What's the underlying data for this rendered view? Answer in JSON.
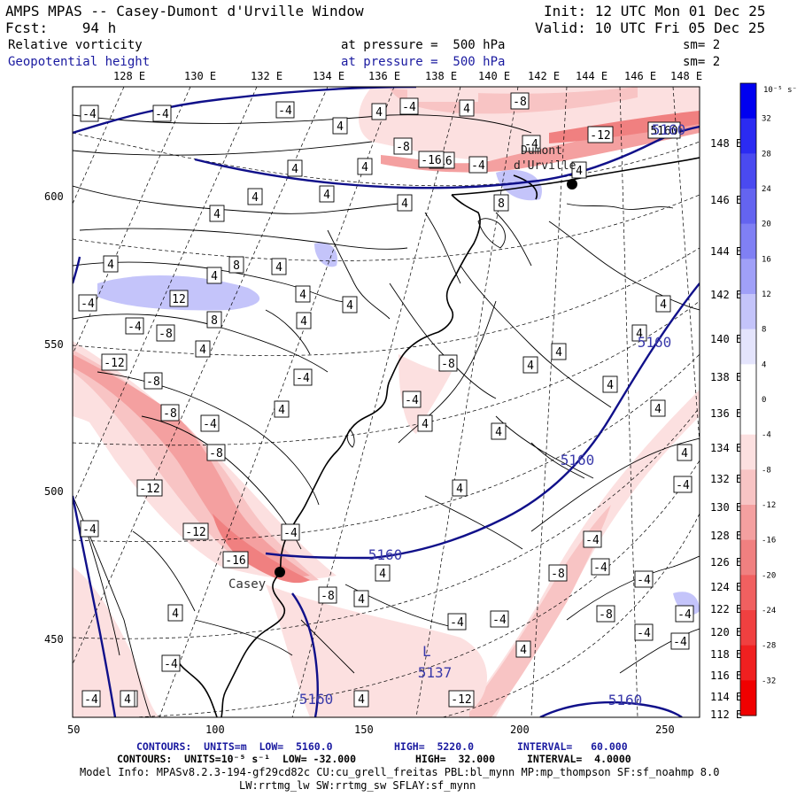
{
  "header": {
    "title": "AMPS MPAS -- Casey-Dumont d'Urville Window",
    "init": "Init: 12 UTC Mon 01 Dec 25",
    "fcst": "Fcst:    94 h",
    "valid": "Valid: 10 UTC Fri 05 Dec 25"
  },
  "fields": {
    "f1_name": "Relative vorticity",
    "f1_level": "at pressure =  500 hPa",
    "f1_sm": "sm= 2",
    "f2_name": "Geopotential height",
    "f2_level": "at pressure =  500 hPa",
    "f2_sm": "sm= 2"
  },
  "top_lon_labels": [
    "128 E",
    "130 E",
    "132 E",
    "134 E",
    "136 E",
    "138 E",
    "140 E",
    "142 E",
    "144 E",
    "146 E",
    "148 E"
  ],
  "right_lon_labels": [
    "148 E",
    "146 E",
    "144 E",
    "142 E",
    "140 E",
    "138 E",
    "136 E",
    "134 E",
    "132 E",
    "130 E",
    "128 E",
    "126 E",
    "124 E",
    "122 E",
    "120 E",
    "118 E",
    "116 E",
    "114 E",
    "112 E"
  ],
  "x_axis_labels": [
    "50",
    "100",
    "150",
    "200",
    "250"
  ],
  "y_axis_labels": [
    "600",
    "550",
    "500",
    "450"
  ],
  "colorbar": {
    "unit": "10⁻⁵ s⁻¹",
    "labels": [
      "32",
      "28",
      "24",
      "20",
      "16",
      "12",
      "8",
      "4",
      "0",
      "-4",
      "-8",
      "-12",
      "-16",
      "-20",
      "-24",
      "-28",
      "-32"
    ],
    "colors": [
      "#0000f0",
      "#2b2bf2",
      "#4a4af0",
      "#6464f0",
      "#8080f4",
      "#a0a0f8",
      "#c4c4fa",
      "#e4e4fc",
      "#ffffff",
      "#ffffff",
      "#fce0e0",
      "#f8c4c4",
      "#f4a0a0",
      "#f08080",
      "#f06060",
      "#f04040",
      "#f02020",
      "#f00000"
    ]
  },
  "place_labels": {
    "casey": "Casey",
    "durville": "Dumont\nd'Urville"
  },
  "height_labels": [
    "5160",
    "5160",
    "5160",
    "5160",
    "5160",
    "5137",
    "5160"
  ],
  "low_marker": "L",
  "vort_labels": [
    "-4",
    "-4",
    "-4",
    "4",
    "-4",
    "4",
    "-8",
    "-12",
    "-16",
    "5160",
    "4",
    "-4",
    "-8",
    "-16",
    "-4",
    "4",
    "4",
    "4",
    "4",
    "4",
    "8",
    "4",
    "4",
    "8",
    "4",
    "4",
    "12",
    "4",
    "4",
    "4",
    "8",
    "-4",
    "-4",
    "-8",
    "4",
    "4",
    "4",
    "4",
    "-12",
    "-8",
    "-8",
    "4",
    "-4",
    "4",
    "-8",
    "4",
    "-4",
    "4",
    "-4",
    "4",
    "4",
    "-8",
    "4",
    "4",
    "-12",
    "4",
    "-4",
    "-12",
    "-16",
    "-4",
    "4",
    "-4",
    "-8",
    "-4",
    "4",
    "-4",
    "-4",
    "-8",
    "-8",
    "-4",
    "-4",
    "-4",
    "4",
    "-4",
    "-4",
    "-4",
    "-4",
    "4",
    "4",
    "-12",
    "4",
    "4"
  ],
  "footer": {
    "line1_a": "CONTOURS:  UNITS=m  LOW=  5160.0",
    "line1_b": "HIGH=  5220.0",
    "line1_c": "INTERVAL=   60.000",
    "line2_a": "CONTOURS:  UNITS=10⁻⁵ s⁻¹  LOW= -32.000",
    "line2_b": "HIGH=  32.000",
    "line2_c": "INTERVAL=  4.0000",
    "model_info": "Model Info: MPASv8.2.3-194-gf29cd82c CU:cu_grell_freitas PBL:bl_mynn MP:mp_thompson SF:sf_noahmp 8.0",
    "model_info2": "LW:rrtmg_lw SW:rrtmg_sw SFLAY:sf_mynn"
  }
}
